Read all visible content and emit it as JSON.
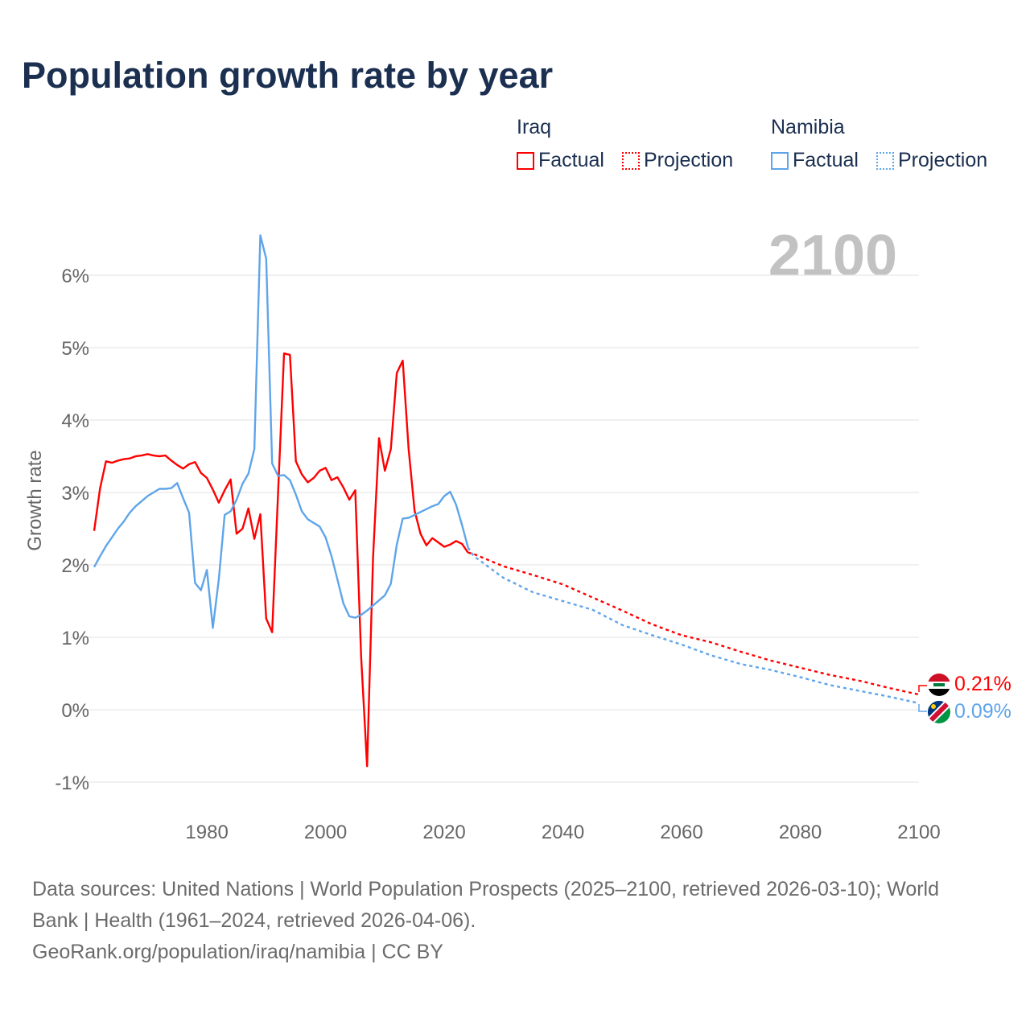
{
  "title": "Population growth rate by year",
  "legend": {
    "groups": [
      {
        "name": "Iraq",
        "factual": "Factual",
        "projection": "Projection",
        "color": "#ff0000"
      },
      {
        "name": "Namibia",
        "factual": "Factual",
        "projection": "Projection",
        "color": "#5fa5ea"
      }
    ]
  },
  "year_watermark": "2100",
  "end_labels": {
    "iraq": "0.21%",
    "namibia": "0.09%"
  },
  "footer": {
    "line1": "Data sources: United Nations | World Population Prospects (2025–2100, retrieved 2026-03-10); World",
    "line2": "Bank | Health (1961–2024, retrieved 2026-04-06).",
    "line3": "GeoRank.org/population/iraq/namibia | CC BY"
  },
  "chart_data": {
    "type": "line",
    "title": "Population growth rate by year",
    "xlabel": "",
    "ylabel": "Growth rate",
    "xlim": [
      1961,
      2100
    ],
    "ylim": [
      -1.2,
      6.6
    ],
    "x_ticks": [
      1980,
      2000,
      2020,
      2040,
      2060,
      2080,
      2100
    ],
    "y_ticks": [
      -1,
      0,
      1,
      2,
      3,
      4,
      5,
      6
    ],
    "y_tick_labels": [
      "-1%",
      "0%",
      "1%",
      "2%",
      "3%",
      "4%",
      "5%",
      "6%"
    ],
    "grid": true,
    "legend_position": "top-right",
    "series": [
      {
        "name": "Iraq Factual",
        "color": "#ff0000",
        "style": "solid",
        "x_start": 1961,
        "values": [
          2.47,
          3.06,
          3.43,
          3.41,
          3.44,
          3.46,
          3.47,
          3.5,
          3.51,
          3.53,
          3.51,
          3.5,
          3.51,
          3.44,
          3.38,
          3.33,
          3.39,
          3.42,
          3.27,
          3.2,
          3.04,
          2.86,
          3.03,
          3.18,
          2.43,
          2.5,
          2.78,
          2.36,
          2.7,
          1.26,
          1.07,
          3.0,
          4.92,
          4.9,
          3.43,
          3.25,
          3.14,
          3.2,
          3.3,
          3.34,
          3.17,
          3.21,
          3.07,
          2.9,
          3.03,
          0.73,
          -0.78,
          2.1,
          3.75,
          3.3,
          3.6,
          4.65,
          4.82,
          3.6,
          2.75,
          2.43,
          2.27,
          2.37,
          2.31,
          2.25,
          2.28,
          2.33,
          2.29,
          2.17
        ]
      },
      {
        "name": "Iraq Projection",
        "color": "#ff0000",
        "style": "dotted",
        "x": [
          2024,
          2025,
          2030,
          2035,
          2040,
          2045,
          2050,
          2055,
          2060,
          2065,
          2070,
          2075,
          2080,
          2085,
          2090,
          2095,
          2100
        ],
        "values": [
          2.17,
          2.15,
          1.98,
          1.86,
          1.73,
          1.55,
          1.37,
          1.18,
          1.03,
          0.93,
          0.8,
          0.68,
          0.58,
          0.48,
          0.4,
          0.3,
          0.21
        ]
      },
      {
        "name": "Namibia Factual",
        "color": "#5fa5ea",
        "style": "solid",
        "x_start": 1961,
        "values": [
          1.97,
          2.12,
          2.26,
          2.38,
          2.5,
          2.6,
          2.72,
          2.81,
          2.88,
          2.95,
          3.0,
          3.05,
          3.05,
          3.06,
          3.13,
          2.92,
          2.72,
          1.75,
          1.65,
          1.93,
          1.13,
          1.8,
          2.69,
          2.74,
          2.9,
          3.12,
          3.26,
          3.6,
          6.55,
          6.23,
          3.4,
          3.23,
          3.24,
          3.17,
          2.97,
          2.74,
          2.63,
          2.58,
          2.53,
          2.38,
          2.12,
          1.8,
          1.47,
          1.29,
          1.27,
          1.31,
          1.37,
          1.44,
          1.51,
          1.58,
          1.74,
          2.28,
          2.64,
          2.65,
          2.69,
          2.73,
          2.77,
          2.81,
          2.84,
          2.95,
          3.01,
          2.83,
          2.55,
          2.24
        ]
      },
      {
        "name": "Namibia Projection",
        "color": "#5fa5ea",
        "style": "dotted",
        "x": [
          2024,
          2025,
          2030,
          2035,
          2040,
          2045,
          2050,
          2055,
          2060,
          2065,
          2070,
          2075,
          2080,
          2085,
          2090,
          2095,
          2100
        ],
        "values": [
          2.24,
          2.12,
          1.82,
          1.62,
          1.5,
          1.38,
          1.17,
          1.03,
          0.9,
          0.75,
          0.63,
          0.55,
          0.45,
          0.34,
          0.26,
          0.18,
          0.09
        ]
      }
    ]
  }
}
